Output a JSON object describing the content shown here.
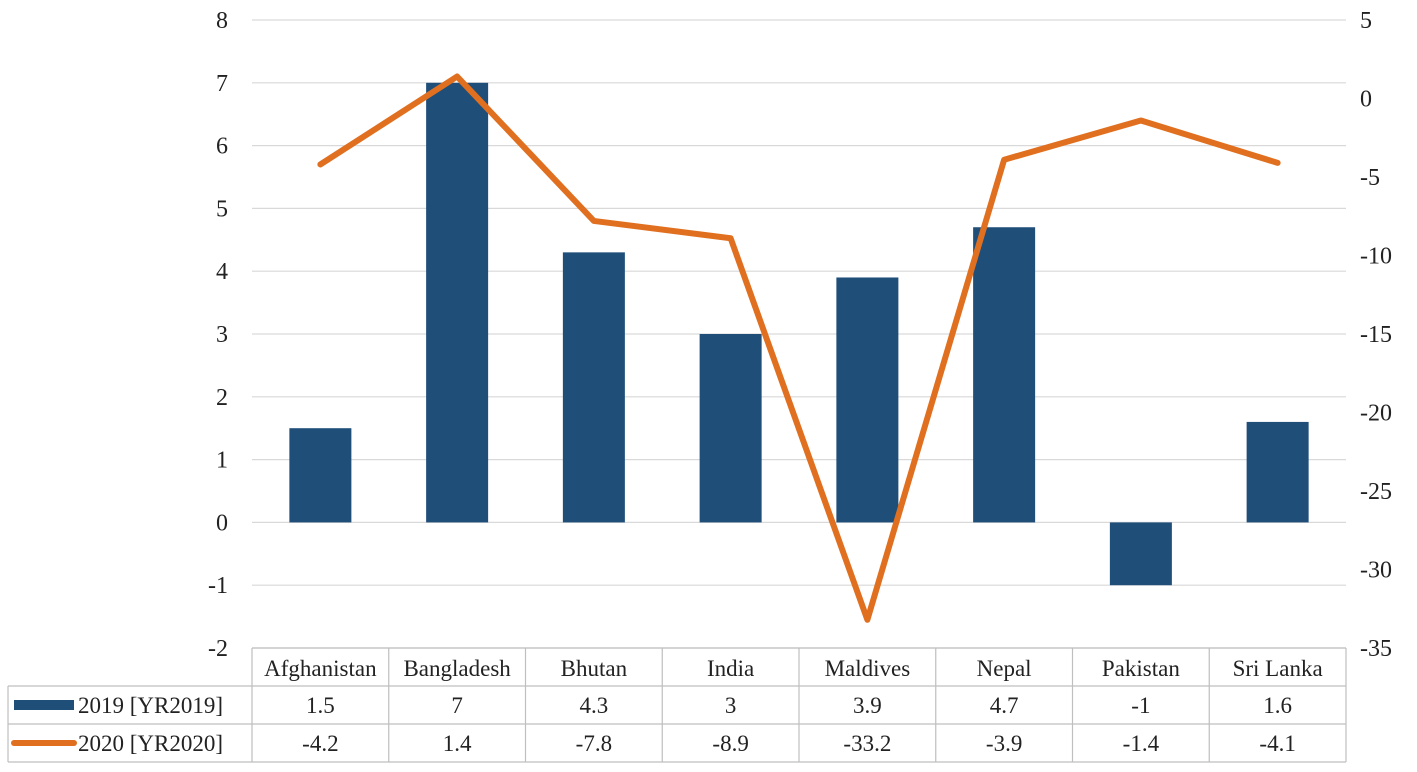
{
  "chart_data": {
    "type": "bar+line",
    "categories": [
      "Afghanistan",
      "Bangladesh",
      "Bhutan",
      "India",
      "Maldives",
      "Nepal",
      "Pakistan",
      "Sri Lanka"
    ],
    "series": [
      {
        "name": "2019 [YR2019]",
        "type": "bar",
        "axis": "left",
        "color": "#1f4e79",
        "values": [
          1.5,
          7,
          4.3,
          3,
          3.9,
          4.7,
          -1,
          1.6
        ],
        "labels": [
          "1.5",
          "7",
          "4.3",
          "3",
          "3.9",
          "4.7",
          "-1",
          "1.6"
        ]
      },
      {
        "name": "2020 [YR2020]",
        "type": "line",
        "axis": "right",
        "color": "#e07020",
        "values": [
          -4.2,
          1.4,
          -7.8,
          -8.9,
          -33.2,
          -3.9,
          -1.4,
          -4.1
        ],
        "labels": [
          "-4.2",
          "1.4",
          "-7.8",
          "-8.9",
          "-33.2",
          "-3.9",
          "-1.4",
          "-4.1"
        ]
      }
    ],
    "y_left": {
      "min": -2,
      "max": 8,
      "step": 1,
      "ticks": [
        "-2",
        "-1",
        "0",
        "1",
        "2",
        "3",
        "4",
        "5",
        "6",
        "7",
        "8"
      ]
    },
    "y_right": {
      "min": -35,
      "max": 5,
      "step": 5,
      "ticks": [
        "-35",
        "-30",
        "-25",
        "-20",
        "-15",
        "-10",
        "-5",
        "0",
        "5"
      ]
    },
    "grid": true,
    "legend": "data-table"
  }
}
